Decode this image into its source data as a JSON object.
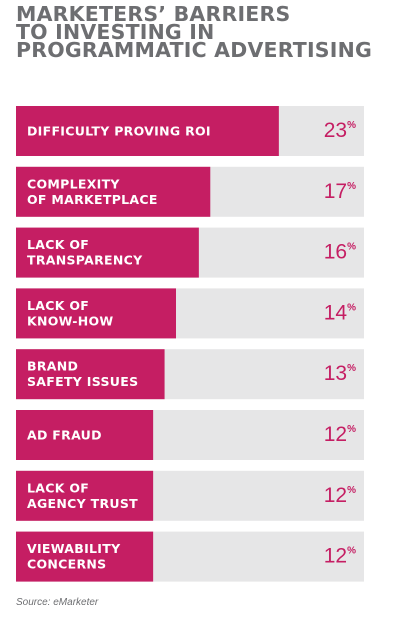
{
  "title_lines": [
    "MARKETERS’ BARRIERS",
    "TO INVESTING IN",
    "PROGRAMMATIC ADVERTISING"
  ],
  "source": "Source: eMarketer",
  "colors": {
    "bar": "#c51e63",
    "track": "#e6e6e7",
    "title": "#6d6e71",
    "value": "#c51e63"
  },
  "chart_data": {
    "type": "bar",
    "orientation": "horizontal",
    "title": "MARKETERS’ BARRIERS TO INVESTING IN PROGRAMMATIC ADVERTISING",
    "categories": [
      [
        "DIFFICULTY PROVING ROI"
      ],
      [
        "COMPLEXITY",
        "OF MARKETPLACE"
      ],
      [
        "LACK OF",
        "TRANSPARENCY"
      ],
      [
        "LACK OF",
        "KNOW-HOW"
      ],
      [
        "BRAND",
        "SAFETY ISSUES"
      ],
      [
        "AD FRAUD"
      ],
      [
        "LACK OF",
        "AGENCY TRUST"
      ],
      [
        "VIEWABILITY",
        "CONCERNS"
      ]
    ],
    "values": [
      23,
      17,
      16,
      14,
      13,
      12,
      12,
      12
    ],
    "value_suffix": "%",
    "xlim": [
      0,
      23.1
    ],
    "grid": false,
    "legend": "none"
  }
}
